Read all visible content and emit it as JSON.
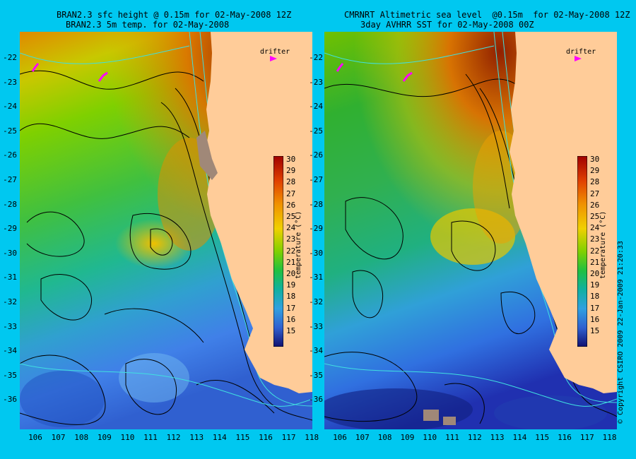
{
  "left_panel": {
    "title_line1": "BRAN2.3 sfc height @ 0.15m for 02-May-2008 12Z",
    "title_line2": "BRAN2.3 5m temp. for 02-May-2008"
  },
  "right_panel": {
    "title_line1": "CMRNRT Altimetric sea level  @0.15m  for 02-May-2008 12Z",
    "title_line2": "3day AVHRR SST for 02-May-2008 00Z"
  },
  "y_ticks": [
    "-22",
    "-23",
    "-24",
    "-25",
    "-26",
    "-27",
    "-28",
    "-29",
    "-30",
    "-31",
    "-32",
    "-33",
    "-34",
    "-35",
    "-36"
  ],
  "x_ticks": [
    "106",
    "107",
    "108",
    "109",
    "110",
    "111",
    "112",
    "113",
    "114",
    "115",
    "116",
    "117",
    "118"
  ],
  "colorbar": {
    "ticks": [
      "30",
      "29",
      "28",
      "27",
      "26",
      "25",
      "24",
      "23",
      "22",
      "21",
      "20",
      "19",
      "18",
      "17",
      "16",
      "15"
    ],
    "label": "temperature (°C)",
    "range": [
      14.5,
      30.5
    ]
  },
  "drifter_label": "drifter",
  "copyright": "© Copyright CSIRO 2009   22-Jan-2009 21:20:33",
  "colors": {
    "background": "#00c8f0",
    "land": "#ffcc99",
    "contour": "#000000",
    "isobath": "#40e0e0",
    "drifter": "#ff00ff"
  }
}
